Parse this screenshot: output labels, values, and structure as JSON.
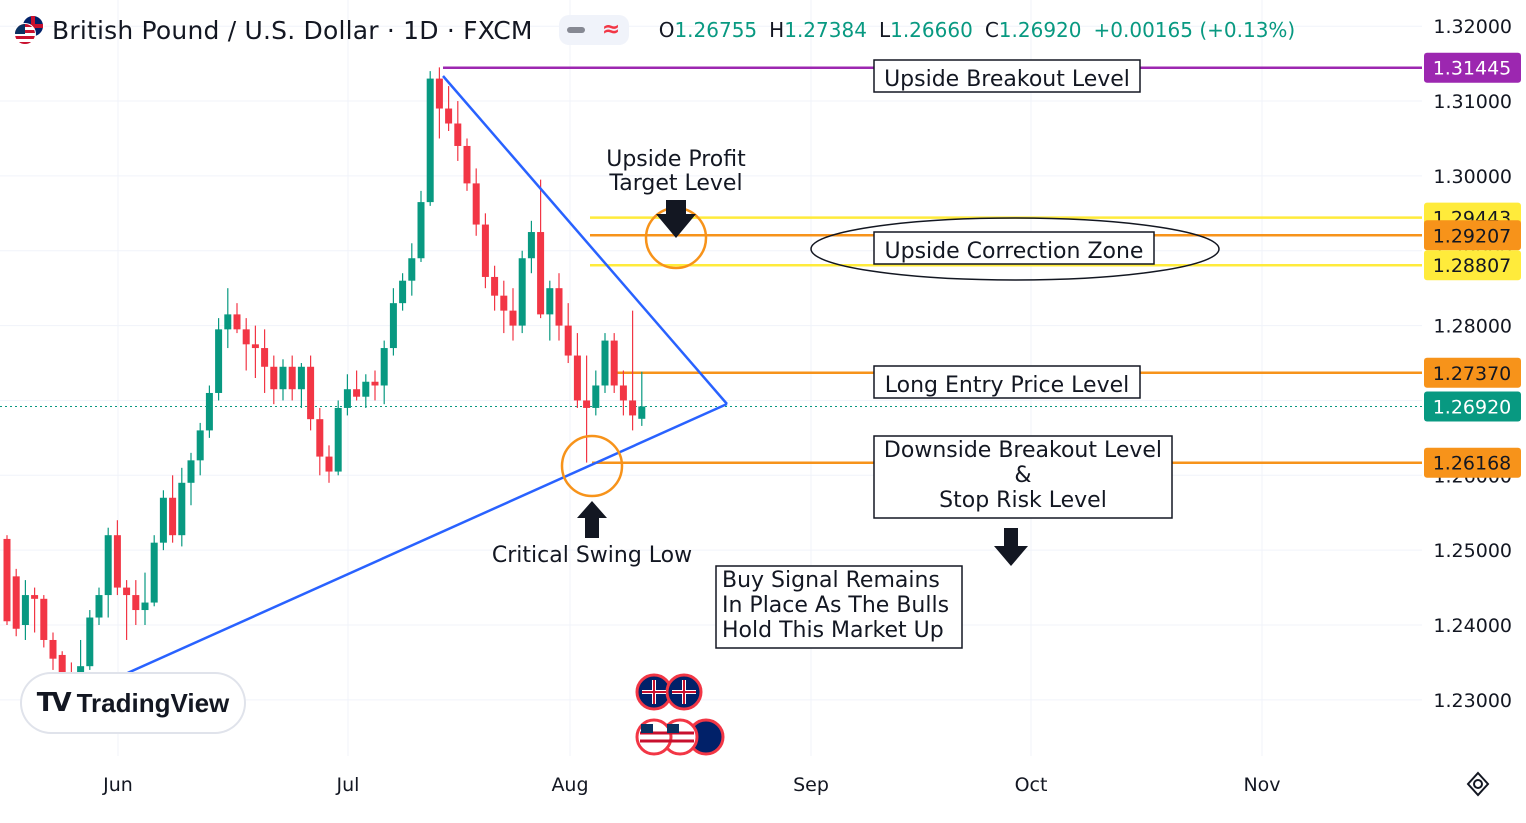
{
  "header": {
    "symbol_title": "British Pound / U.S. Dollar · 1D · FXCM",
    "ohlc": [
      {
        "key": "O",
        "value": "1.26755"
      },
      {
        "key": "H",
        "value": "1.27384"
      },
      {
        "key": "L",
        "value": "1.26660"
      },
      {
        "key": "C",
        "value": "1.26920"
      }
    ],
    "change": "+0.00165 (+0.13%)"
  },
  "logo": {
    "mark": "TV",
    "text": "TradingView"
  },
  "colors": {
    "up": "#089981",
    "down": "#f23645",
    "trend": "#2962ff",
    "purple": "#9c27b0",
    "orange": "#f7931a",
    "yellow": "#ffeb3b",
    "yellow_label": "#ffeb3b"
  },
  "chart_data": {
    "type": "candlestick",
    "ylim": [
      1.2225,
      1.3235
    ],
    "y_ticks": [
      "1.32000",
      "1.31000",
      "1.30000",
      "1.29000",
      "1.28000",
      "1.27000",
      "1.26000",
      "1.25000",
      "1.24000",
      "1.23000"
    ],
    "x_ticks": [
      "Jun",
      "Jul",
      "Aug",
      "Sep",
      "Oct",
      "Nov"
    ],
    "candles": [
      {
        "o": 1.2515,
        "h": 1.252,
        "l": 1.24,
        "c": 1.2405
      },
      {
        "o": 1.2465,
        "h": 1.2475,
        "l": 1.2385,
        "c": 1.2395
      },
      {
        "o": 1.24,
        "h": 1.246,
        "l": 1.238,
        "c": 1.244
      },
      {
        "o": 1.244,
        "h": 1.245,
        "l": 1.239,
        "c": 1.2435
      },
      {
        "o": 1.2435,
        "h": 1.244,
        "l": 1.237,
        "c": 1.238
      },
      {
        "o": 1.238,
        "h": 1.239,
        "l": 1.234,
        "c": 1.2355
      },
      {
        "o": 1.236,
        "h": 1.2365,
        "l": 1.232,
        "c": 1.2335
      },
      {
        "o": 1.2335,
        "h": 1.235,
        "l": 1.231,
        "c": 1.233
      },
      {
        "o": 1.233,
        "h": 1.238,
        "l": 1.2315,
        "c": 1.2345
      },
      {
        "o": 1.2345,
        "h": 1.242,
        "l": 1.234,
        "c": 1.241
      },
      {
        "o": 1.241,
        "h": 1.245,
        "l": 1.24,
        "c": 1.244
      },
      {
        "o": 1.244,
        "h": 1.253,
        "l": 1.241,
        "c": 1.252
      },
      {
        "o": 1.252,
        "h": 1.254,
        "l": 1.244,
        "c": 1.245
      },
      {
        "o": 1.245,
        "h": 1.246,
        "l": 1.238,
        "c": 1.244
      },
      {
        "o": 1.244,
        "h": 1.246,
        "l": 1.24,
        "c": 1.242
      },
      {
        "o": 1.242,
        "h": 1.247,
        "l": 1.24,
        "c": 1.243
      },
      {
        "o": 1.243,
        "h": 1.252,
        "l": 1.2425,
        "c": 1.251
      },
      {
        "o": 1.251,
        "h": 1.258,
        "l": 1.25,
        "c": 1.257
      },
      {
        "o": 1.257,
        "h": 1.26,
        "l": 1.251,
        "c": 1.252
      },
      {
        "o": 1.252,
        "h": 1.261,
        "l": 1.2505,
        "c": 1.259
      },
      {
        "o": 1.259,
        "h": 1.263,
        "l": 1.256,
        "c": 1.262
      },
      {
        "o": 1.262,
        "h": 1.267,
        "l": 1.26,
        "c": 1.266
      },
      {
        "o": 1.266,
        "h": 1.272,
        "l": 1.265,
        "c": 1.271
      },
      {
        "o": 1.271,
        "h": 1.281,
        "l": 1.27,
        "c": 1.2795
      },
      {
        "o": 1.2795,
        "h": 1.285,
        "l": 1.277,
        "c": 1.2815
      },
      {
        "o": 1.2815,
        "h": 1.283,
        "l": 1.279,
        "c": 1.2795
      },
      {
        "o": 1.2795,
        "h": 1.281,
        "l": 1.274,
        "c": 1.2775
      },
      {
        "o": 1.2775,
        "h": 1.28,
        "l": 1.273,
        "c": 1.277
      },
      {
        "o": 1.277,
        "h": 1.2795,
        "l": 1.271,
        "c": 1.2745
      },
      {
        "o": 1.2745,
        "h": 1.276,
        "l": 1.2695,
        "c": 1.2715
      },
      {
        "o": 1.2715,
        "h": 1.2755,
        "l": 1.27,
        "c": 1.2745
      },
      {
        "o": 1.2745,
        "h": 1.276,
        "l": 1.27,
        "c": 1.2715
      },
      {
        "o": 1.2715,
        "h": 1.275,
        "l": 1.269,
        "c": 1.2745
      },
      {
        "o": 1.2745,
        "h": 1.276,
        "l": 1.266,
        "c": 1.2675
      },
      {
        "o": 1.2675,
        "h": 1.269,
        "l": 1.26,
        "c": 1.2625
      },
      {
        "o": 1.2625,
        "h": 1.264,
        "l": 1.259,
        "c": 1.2605
      },
      {
        "o": 1.2605,
        "h": 1.27,
        "l": 1.26,
        "c": 1.269
      },
      {
        "o": 1.269,
        "h": 1.2735,
        "l": 1.268,
        "c": 1.2715
      },
      {
        "o": 1.2715,
        "h": 1.274,
        "l": 1.27,
        "c": 1.2705
      },
      {
        "o": 1.2705,
        "h": 1.2735,
        "l": 1.269,
        "c": 1.2725
      },
      {
        "o": 1.2725,
        "h": 1.274,
        "l": 1.27,
        "c": 1.272
      },
      {
        "o": 1.272,
        "h": 1.278,
        "l": 1.2695,
        "c": 1.277
      },
      {
        "o": 1.277,
        "h": 1.285,
        "l": 1.276,
        "c": 1.283
      },
      {
        "o": 1.283,
        "h": 1.287,
        "l": 1.282,
        "c": 1.286
      },
      {
        "o": 1.286,
        "h": 1.291,
        "l": 1.284,
        "c": 1.289
      },
      {
        "o": 1.289,
        "h": 1.298,
        "l": 1.2885,
        "c": 1.2965
      },
      {
        "o": 1.2965,
        "h": 1.314,
        "l": 1.296,
        "c": 1.313
      },
      {
        "o": 1.313,
        "h": 1.3145,
        "l": 1.305,
        "c": 1.309
      },
      {
        "o": 1.309,
        "h": 1.312,
        "l": 1.306,
        "c": 1.307
      },
      {
        "o": 1.307,
        "h": 1.31,
        "l": 1.302,
        "c": 1.304
      },
      {
        "o": 1.304,
        "h": 1.305,
        "l": 1.298,
        "c": 1.299
      },
      {
        "o": 1.299,
        "h": 1.301,
        "l": 1.292,
        "c": 1.2935
      },
      {
        "o": 1.2935,
        "h": 1.295,
        "l": 1.285,
        "c": 1.2865
      },
      {
        "o": 1.2865,
        "h": 1.288,
        "l": 1.282,
        "c": 1.284
      },
      {
        "o": 1.284,
        "h": 1.286,
        "l": 1.279,
        "c": 1.282
      },
      {
        "o": 1.282,
        "h": 1.285,
        "l": 1.278,
        "c": 1.28
      },
      {
        "o": 1.28,
        "h": 1.29,
        "l": 1.279,
        "c": 1.289
      },
      {
        "o": 1.289,
        "h": 1.294,
        "l": 1.287,
        "c": 1.2925
      },
      {
        "o": 1.2925,
        "h": 1.2995,
        "l": 1.281,
        "c": 1.2815
      },
      {
        "o": 1.2815,
        "h": 1.286,
        "l": 1.278,
        "c": 1.285
      },
      {
        "o": 1.285,
        "h": 1.287,
        "l": 1.278,
        "c": 1.28
      },
      {
        "o": 1.28,
        "h": 1.283,
        "l": 1.275,
        "c": 1.276
      },
      {
        "o": 1.276,
        "h": 1.279,
        "l": 1.269,
        "c": 1.27
      },
      {
        "o": 1.27,
        "h": 1.276,
        "l": 1.2617,
        "c": 1.269
      },
      {
        "o": 1.269,
        "h": 1.274,
        "l": 1.268,
        "c": 1.272
      },
      {
        "o": 1.272,
        "h": 1.279,
        "l": 1.271,
        "c": 1.278
      },
      {
        "o": 1.278,
        "h": 1.279,
        "l": 1.271,
        "c": 1.272
      },
      {
        "o": 1.272,
        "h": 1.274,
        "l": 1.268,
        "c": 1.27
      },
      {
        "o": 1.27,
        "h": 1.282,
        "l": 1.266,
        "c": 1.268
      },
      {
        "o": 1.26755,
        "h": 1.27384,
        "l": 1.2666,
        "c": 1.2692
      }
    ],
    "levels": [
      {
        "name": "Upside Breakout Level",
        "value": 1.31445,
        "price_label": "1.31445",
        "color": "#9c27b0",
        "label_fg": "#ffffff",
        "text": "Upside Breakout Level"
      },
      {
        "name": "Upside Correction Zone (upper)",
        "value": 1.29443,
        "price_label": "1.29443",
        "color": "#ffeb3b",
        "label_fg": "#131722"
      },
      {
        "name": "Upside Correction Zone (mid)",
        "value": 1.29207,
        "price_label": "1.29207",
        "color": "#f7931a",
        "label_fg": "#131722",
        "text": "Upside Correction Zone"
      },
      {
        "name": "Upside Correction Zone (lower)",
        "value": 1.28807,
        "price_label": "1.28807",
        "color": "#ffeb3b",
        "label_fg": "#131722"
      },
      {
        "name": "Long Entry Price Level",
        "value": 1.2737,
        "price_label": "1.27370",
        "color": "#f7931a",
        "label_fg": "#131722",
        "text": "Long Entry Price Level"
      },
      {
        "name": "Last Price",
        "value": 1.2692,
        "price_label": "1.26920",
        "color": "#089981",
        "label_fg": "#ffffff"
      },
      {
        "name": "Downside Breakout Level & Stop Risk Level",
        "value": 1.26168,
        "price_label": "1.26168",
        "color": "#f7931a",
        "label_fg": "#131722"
      }
    ],
    "annotations": {
      "upside_profit_target": [
        "Upside Profit",
        "Target Level"
      ],
      "downside_breakout": [
        "Downside Breakout Level",
        "&",
        "Stop Risk Level"
      ],
      "critical_swing_low": "Critical Swing Low",
      "buy_signal": [
        "Buy Signal Remains",
        "In Place As The Bulls",
        "Hold This Market Up"
      ]
    }
  }
}
